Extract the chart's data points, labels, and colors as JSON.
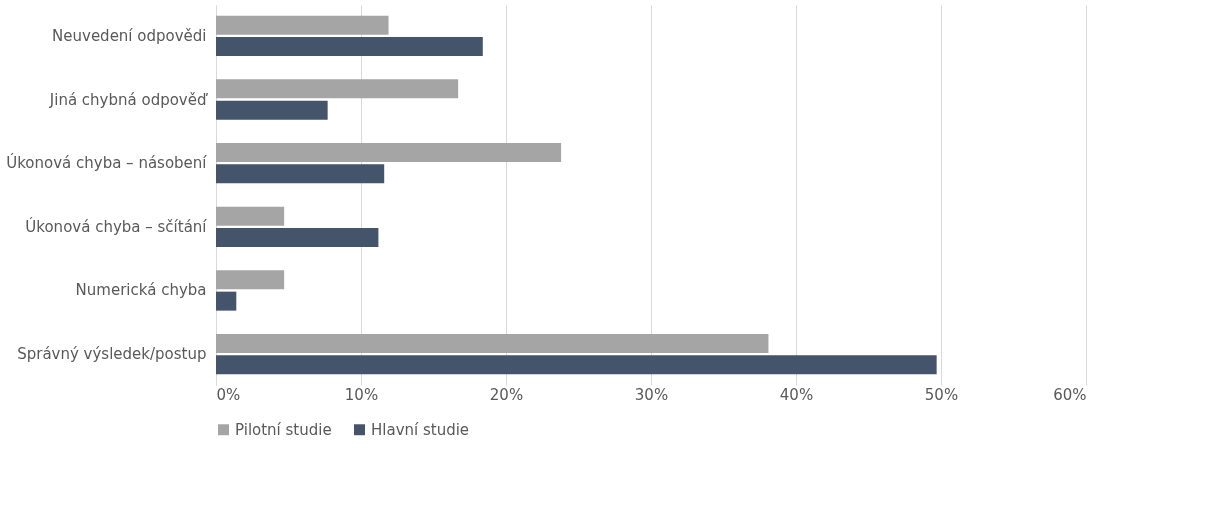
{
  "chart_data": {
    "type": "bar",
    "orientation": "horizontal",
    "categories": [
      "Neuvedení odpovědi",
      "Jiná chybná odpověď",
      "Úkonová chyba – násobení",
      "Úkonová chyba – sčítání",
      "Numerická chyba",
      "Správný výsledek/postup"
    ],
    "series": [
      {
        "name": "Pilotní studie",
        "color": "#a5a5a5",
        "values": [
          11.9,
          16.7,
          23.8,
          4.7,
          4.7,
          38.1
        ]
      },
      {
        "name": "Hlavní studie",
        "color": "#44546a",
        "values": [
          18.4,
          7.7,
          11.6,
          11.2,
          1.4,
          49.7
        ]
      }
    ],
    "xlim": [
      0,
      60
    ],
    "xticks": [
      {
        "value": 0,
        "label": "0%"
      },
      {
        "value": 10,
        "label": "10%"
      },
      {
        "value": 20,
        "label": "20%"
      },
      {
        "value": 30,
        "label": "30%"
      },
      {
        "value": 40,
        "label": "40%"
      },
      {
        "value": 50,
        "label": "50%"
      },
      {
        "value": 60,
        "label": "60%"
      }
    ],
    "grid": "x",
    "legend": "bottom"
  }
}
